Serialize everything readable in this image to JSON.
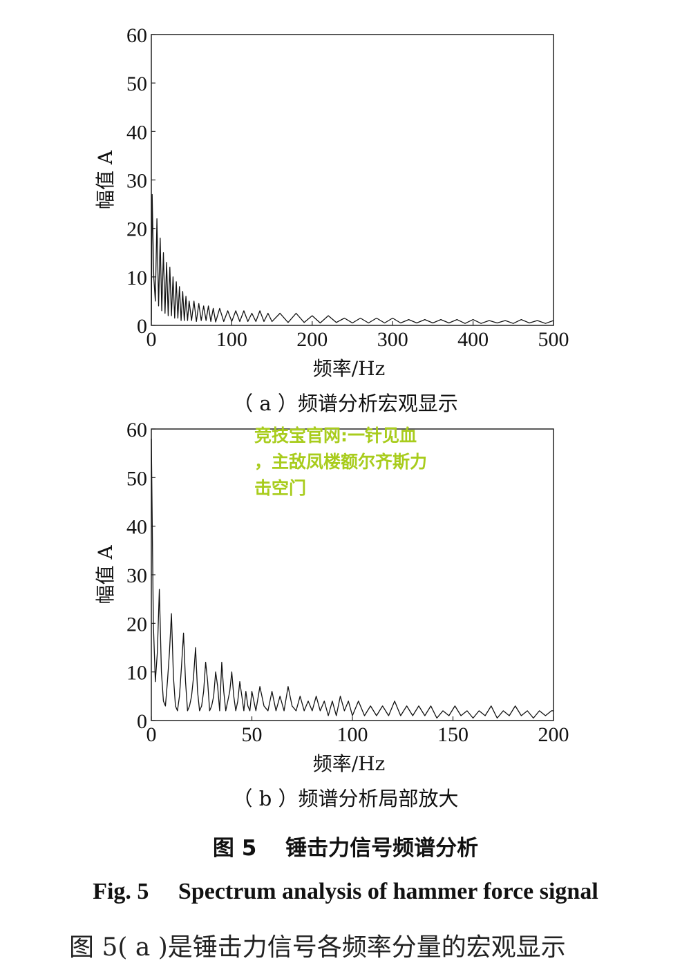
{
  "chart_data": [
    {
      "type": "line",
      "caption": "（ a ）频谱分析宏观显示",
      "xlabel": "频率/Hz",
      "ylabel": "幅值 A",
      "xlim": [
        0,
        500
      ],
      "ylim": [
        0,
        60
      ],
      "xticks": [
        "0",
        "100",
        "200",
        "300",
        "400",
        "500"
      ],
      "yticks": [
        "0",
        "10",
        "20",
        "30",
        "40",
        "50",
        "60"
      ],
      "grid": false,
      "series": [
        {
          "x": [
            0,
            1,
            3,
            5,
            7,
            9,
            11,
            13,
            15,
            17,
            19,
            21,
            23,
            25,
            27,
            29,
            31,
            33,
            35,
            37,
            39,
            41,
            43,
            45,
            47,
            50,
            53,
            56,
            59,
            62,
            65,
            68,
            71,
            74,
            77,
            80,
            85,
            90,
            95,
            100,
            105,
            110,
            115,
            120,
            125,
            130,
            135,
            140,
            145,
            150,
            160,
            170,
            180,
            190,
            200,
            210,
            220,
            230,
            240,
            250,
            260,
            270,
            280,
            290,
            300,
            310,
            320,
            330,
            340,
            350,
            360,
            370,
            380,
            390,
            400,
            410,
            420,
            430,
            440,
            450,
            460,
            470,
            480,
            490,
            500
          ],
          "y": [
            1,
            27,
            10,
            5,
            22,
            4,
            18,
            3,
            15,
            2.5,
            13,
            2,
            12,
            2,
            10,
            1.5,
            9,
            1.5,
            8,
            1,
            7,
            1,
            6,
            1,
            5,
            1,
            5,
            0.8,
            4.5,
            1,
            4,
            1,
            4,
            0.8,
            3.5,
            0.7,
            3.5,
            0.8,
            3,
            0.8,
            3,
            0.8,
            3,
            0.8,
            2.5,
            0.8,
            3,
            0.8,
            2.5,
            0.8,
            2.5,
            0.6,
            2.5,
            0.6,
            2,
            0.5,
            2,
            0.6,
            1.5,
            0.5,
            1.5,
            0.5,
            1.5,
            0.5,
            1.5,
            0.5,
            1.2,
            0.5,
            1.2,
            0.5,
            1.2,
            0.5,
            1.2,
            0.4,
            1.2,
            0.4,
            1,
            0.5,
            1,
            0.4,
            1.2,
            0.5,
            1,
            0.4,
            1
          ]
        }
      ]
    },
    {
      "type": "line",
      "caption": "（ b ）频谱分析局部放大",
      "xlabel": "频率/Hz",
      "ylabel": "幅值 A",
      "xlim": [
        0,
        200
      ],
      "ylim": [
        0,
        60
      ],
      "xticks": [
        "0",
        "50",
        "100",
        "150",
        "200"
      ],
      "yticks": [
        "0",
        "10",
        "20",
        "30",
        "40",
        "50",
        "60"
      ],
      "grid": false,
      "series": [
        {
          "x": [
            0,
            1,
            2,
            3,
            4,
            5,
            6,
            7,
            8,
            9,
            10,
            11,
            12,
            13,
            14,
            15,
            16,
            17,
            18,
            19,
            20,
            21,
            22,
            23,
            24,
            25,
            26,
            27,
            28,
            29,
            30,
            31,
            32,
            33,
            34,
            35,
            36,
            37,
            38,
            39,
            40,
            41,
            42,
            43,
            44,
            45,
            46,
            47,
            48,
            49,
            50,
            52,
            54,
            56,
            58,
            60,
            62,
            64,
            66,
            68,
            70,
            72,
            74,
            76,
            78,
            80,
            82,
            84,
            86,
            88,
            90,
            92,
            94,
            96,
            98,
            100,
            103,
            106,
            109,
            112,
            115,
            118,
            121,
            124,
            127,
            130,
            133,
            136,
            139,
            142,
            145,
            148,
            151,
            154,
            157,
            160,
            163,
            166,
            169,
            172,
            175,
            178,
            181,
            184,
            187,
            190,
            193,
            196,
            199,
            200
          ],
          "y": [
            58,
            20,
            8,
            14,
            27,
            10,
            4,
            3,
            8,
            14,
            22,
            9,
            3,
            2,
            5,
            11,
            18,
            8,
            2,
            3,
            5,
            9,
            15,
            6,
            2,
            3,
            6,
            12,
            8,
            2,
            3,
            5,
            10,
            7,
            2,
            12,
            6,
            2,
            4,
            6,
            10,
            5,
            2,
            4,
            8,
            5,
            2,
            6,
            3,
            2,
            6,
            2,
            7,
            3,
            2,
            6,
            2,
            5,
            2,
            7,
            3,
            2,
            5,
            2,
            4,
            2,
            5,
            2,
            4,
            1,
            4,
            1,
            5,
            2,
            4,
            1,
            4,
            1,
            3,
            1,
            3,
            1,
            4,
            1,
            3,
            1,
            3,
            1,
            3,
            0.5,
            2,
            1,
            3,
            1,
            2,
            0.5,
            2,
            1,
            3,
            0.5,
            2,
            1,
            3,
            1,
            2,
            0.5,
            2,
            1,
            2,
            2
          ]
        }
      ]
    }
  ],
  "figure": {
    "caption_cn": "图 5　 锤击力信号频谱分析",
    "caption_en": "Fig. 5　 Spectrum analysis of hammer force signal"
  },
  "watermark": {
    "line1": "竞技宝官网:一针见血",
    "line2": "，主敌凤楼额尔齐斯力",
    "line3": "击空门"
  },
  "body_text": {
    "fragment": "图 5( a )是锤击力信号各频率分量的宏观显示"
  }
}
